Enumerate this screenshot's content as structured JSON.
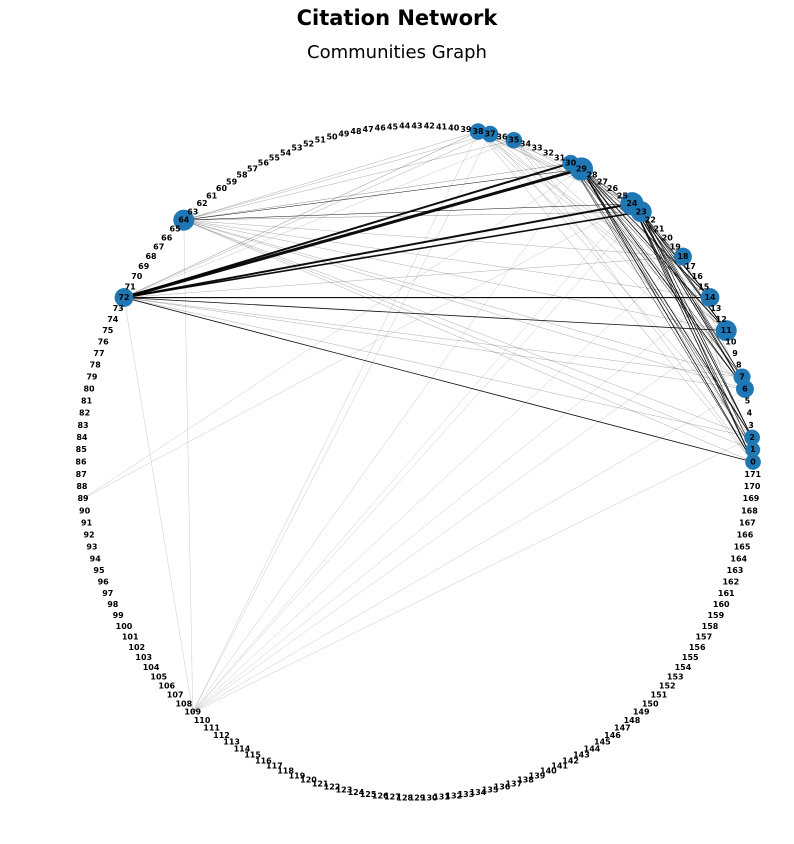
{
  "title": "Citation Network",
  "subtitle": "Communities Graph",
  "node_count": 172,
  "node_color": "#1f77b4",
  "edge_color": "#000000",
  "hub_nodes": [
    {
      "id": 29,
      "size": 3
    },
    {
      "id": 24,
      "size": 3
    },
    {
      "id": 23,
      "size": 2.5
    },
    {
      "id": 11,
      "size": 2.5
    },
    {
      "id": 64,
      "size": 2.5
    },
    {
      "id": 72,
      "size": 2
    },
    {
      "id": 38,
      "size": 1.5
    },
    {
      "id": 37,
      "size": 1.5
    },
    {
      "id": 35,
      "size": 1.5
    },
    {
      "id": 30,
      "size": 1.5
    },
    {
      "id": 18,
      "size": 1.8
    },
    {
      "id": 14,
      "size": 2
    },
    {
      "id": 7,
      "size": 1.6
    },
    {
      "id": 6,
      "size": 1.8
    },
    {
      "id": 2,
      "size": 1.3
    },
    {
      "id": 1,
      "size": 1.1
    },
    {
      "id": 0,
      "size": 1.3
    }
  ],
  "edges": [
    {
      "source": 72,
      "target": 29,
      "weight": 3
    },
    {
      "source": 72,
      "target": 30,
      "weight": 2
    },
    {
      "source": 72,
      "target": 24,
      "weight": 2
    },
    {
      "source": 72,
      "target": 23,
      "weight": 1.6
    },
    {
      "source": 72,
      "target": 14,
      "weight": 1.2
    },
    {
      "source": 72,
      "target": 11,
      "weight": 0.8
    },
    {
      "source": 72,
      "target": 0,
      "weight": 0.8
    },
    {
      "source": 72,
      "target": 38,
      "weight": 0.4
    },
    {
      "source": 72,
      "target": 37,
      "weight": 0.3
    },
    {
      "source": 72,
      "target": 18,
      "weight": 0.3
    },
    {
      "source": 72,
      "target": 7,
      "weight": 0.3
    },
    {
      "source": 72,
      "target": 6,
      "weight": 0.3
    },
    {
      "source": 72,
      "target": 2,
      "weight": 0.3
    },
    {
      "source": 72,
      "target": 35,
      "weight": 0.2
    },
    {
      "source": 72,
      "target": 109,
      "weight": 0.2
    },
    {
      "source": 64,
      "target": 29,
      "weight": 0.5
    },
    {
      "source": 64,
      "target": 30,
      "weight": 0.4
    },
    {
      "source": 64,
      "target": 24,
      "weight": 0.5
    },
    {
      "source": 64,
      "target": 23,
      "weight": 0.4
    },
    {
      "source": 64,
      "target": 38,
      "weight": 0.3
    },
    {
      "source": 64,
      "target": 37,
      "weight": 0.3
    },
    {
      "source": 64,
      "target": 35,
      "weight": 0.3
    },
    {
      "source": 64,
      "target": 18,
      "weight": 0.3
    },
    {
      "source": 64,
      "target": 14,
      "weight": 0.3
    },
    {
      "source": 64,
      "target": 11,
      "weight": 0.3
    },
    {
      "source": 64,
      "target": 7,
      "weight": 0.3
    },
    {
      "source": 64,
      "target": 6,
      "weight": 0.3
    },
    {
      "source": 64,
      "target": 2,
      "weight": 0.3
    },
    {
      "source": 64,
      "target": 1,
      "weight": 0.3
    },
    {
      "source": 64,
      "target": 0,
      "weight": 0.3
    },
    {
      "source": 64,
      "target": 109,
      "weight": 0.2
    },
    {
      "source": 38,
      "target": 29,
      "weight": 0.3
    },
    {
      "source": 38,
      "target": 24,
      "weight": 0.3
    },
    {
      "source": 38,
      "target": 23,
      "weight": 0.3
    },
    {
      "source": 38,
      "target": 14,
      "weight": 0.3
    },
    {
      "source": 38,
      "target": 11,
      "weight": 0.3
    },
    {
      "source": 38,
      "target": 6,
      "weight": 0.3
    },
    {
      "source": 38,
      "target": 0,
      "weight": 0.3
    },
    {
      "source": 38,
      "target": 109,
      "weight": 0.2
    },
    {
      "source": 37,
      "target": 24,
      "weight": 0.3
    },
    {
      "source": 37,
      "target": 11,
      "weight": 0.3
    },
    {
      "source": 37,
      "target": 2,
      "weight": 0.3
    },
    {
      "source": 37,
      "target": 109,
      "weight": 0.2
    },
    {
      "source": 35,
      "target": 24,
      "weight": 0.3
    },
    {
      "source": 35,
      "target": 11,
      "weight": 0.3
    },
    {
      "source": 35,
      "target": 6,
      "weight": 0.3
    },
    {
      "source": 35,
      "target": 0,
      "weight": 0.3
    },
    {
      "source": 30,
      "target": 24,
      "weight": 0.4
    },
    {
      "source": 30,
      "target": 23,
      "weight": 0.4
    },
    {
      "source": 30,
      "target": 14,
      "weight": 0.4
    },
    {
      "source": 30,
      "target": 11,
      "weight": 0.5
    },
    {
      "source": 30,
      "target": 7,
      "weight": 0.4
    },
    {
      "source": 30,
      "target": 6,
      "weight": 0.5
    },
    {
      "source": 30,
      "target": 2,
      "weight": 0.5
    },
    {
      "source": 30,
      "target": 1,
      "weight": 0.4
    },
    {
      "source": 30,
      "target": 0,
      "weight": 0.5
    },
    {
      "source": 29,
      "target": 23,
      "weight": 0.5
    },
    {
      "source": 29,
      "target": 18,
      "weight": 0.5
    },
    {
      "source": 29,
      "target": 14,
      "weight": 0.8
    },
    {
      "source": 29,
      "target": 11,
      "weight": 0.8
    },
    {
      "source": 29,
      "target": 7,
      "weight": 0.5
    },
    {
      "source": 29,
      "target": 6,
      "weight": 0.8
    },
    {
      "source": 29,
      "target": 2,
      "weight": 0.8
    },
    {
      "source": 29,
      "target": 1,
      "weight": 0.5
    },
    {
      "source": 29,
      "target": 0,
      "weight": 0.8
    },
    {
      "source": 29,
      "target": 109,
      "weight": 0.2
    },
    {
      "source": 29,
      "target": 89,
      "weight": 0.2
    },
    {
      "source": 24,
      "target": 18,
      "weight": 0.4
    },
    {
      "source": 24,
      "target": 14,
      "weight": 0.8
    },
    {
      "source": 24,
      "target": 11,
      "weight": 0.8
    },
    {
      "source": 24,
      "target": 7,
      "weight": 0.6
    },
    {
      "source": 24,
      "target": 6,
      "weight": 0.8
    },
    {
      "source": 24,
      "target": 2,
      "weight": 0.8
    },
    {
      "source": 24,
      "target": 1,
      "weight": 0.6
    },
    {
      "source": 24,
      "target": 0,
      "weight": 0.8
    },
    {
      "source": 24,
      "target": 109,
      "weight": 0.2
    },
    {
      "source": 24,
      "target": 89,
      "weight": 0.2
    },
    {
      "source": 23,
      "target": 14,
      "weight": 0.6
    },
    {
      "source": 23,
      "target": 11,
      "weight": 0.6
    },
    {
      "source": 23,
      "target": 7,
      "weight": 0.5
    },
    {
      "source": 23,
      "target": 6,
      "weight": 0.6
    },
    {
      "source": 23,
      "target": 2,
      "weight": 0.6
    },
    {
      "source": 23,
      "target": 0,
      "weight": 0.6
    },
    {
      "source": 23,
      "target": 109,
      "weight": 0.2
    },
    {
      "source": 18,
      "target": 11,
      "weight": 0.3
    },
    {
      "source": 18,
      "target": 6,
      "weight": 0.3
    },
    {
      "source": 18,
      "target": 0,
      "weight": 0.3
    },
    {
      "source": 18,
      "target": 109,
      "weight": 0.2
    },
    {
      "source": 14,
      "target": 109,
      "weight": 0.2
    },
    {
      "source": 11,
      "target": 109,
      "weight": 0.2
    },
    {
      "source": 6,
      "target": 109,
      "weight": 0.2
    },
    {
      "source": 2,
      "target": 109,
      "weight": 0.2
    }
  ]
}
